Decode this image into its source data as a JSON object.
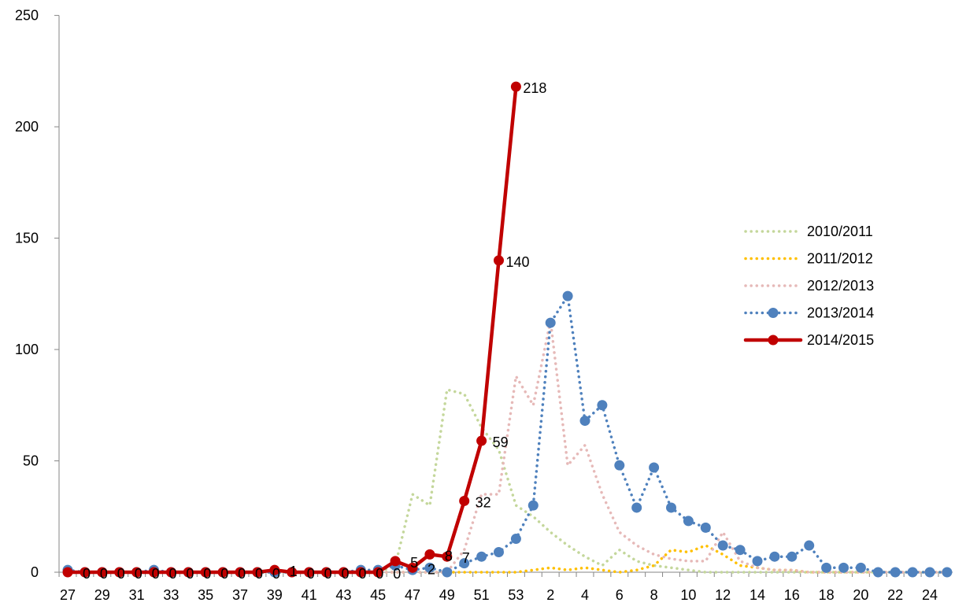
{
  "chart_data": {
    "type": "line",
    "title": "",
    "xlabel": "",
    "ylabel": "",
    "ylim": [
      0,
      250
    ],
    "yticks": [
      0,
      50,
      100,
      150,
      200,
      250
    ],
    "grid": false,
    "legend_placement": "right",
    "x_categories": [
      "27",
      "28",
      "29",
      "30",
      "31",
      "32",
      "33",
      "34",
      "35",
      "36",
      "37",
      "38",
      "39",
      "40",
      "41",
      "42",
      "43",
      "44",
      "45",
      "46",
      "47",
      "48",
      "49",
      "50",
      "51",
      "52",
      "53",
      "1",
      "2",
      "3",
      "4",
      "5",
      "6",
      "7",
      "8",
      "9",
      "10",
      "11",
      "12",
      "13",
      "14",
      "15",
      "16",
      "17",
      "18",
      "19",
      "20",
      "21",
      "22",
      "23",
      "24",
      "25"
    ],
    "x_tick_labels": [
      "27",
      "29",
      "31",
      "33",
      "35",
      "37",
      "39",
      "41",
      "43",
      "45",
      "47",
      "49",
      "51",
      "53",
      "2",
      "4",
      "6",
      "8",
      "10",
      "12",
      "14",
      "16",
      "18",
      "20",
      "22",
      "24"
    ],
    "series": [
      {
        "name": "2010/2011",
        "color": "#c4d79b",
        "style": "dotted",
        "markers": false,
        "values": [
          0,
          0,
          0,
          0,
          0,
          0,
          0,
          0,
          0,
          0,
          0,
          0,
          0,
          0,
          0,
          0,
          0,
          0,
          0,
          3,
          35,
          30,
          82,
          80,
          65,
          55,
          30,
          25,
          18,
          12,
          7,
          3,
          10,
          5,
          3,
          2,
          1,
          0,
          0,
          0,
          0,
          0,
          0,
          0,
          0,
          0,
          0,
          0,
          0,
          0,
          0,
          0
        ]
      },
      {
        "name": "2011/2012",
        "color": "#ffc000",
        "style": "dotted",
        "markers": false,
        "values": [
          0,
          0,
          0,
          0,
          0,
          0,
          0,
          0,
          0,
          0,
          0,
          0,
          0,
          0,
          0,
          0,
          0,
          0,
          0,
          0,
          0,
          0,
          0,
          0,
          0,
          0,
          0,
          1,
          2,
          1,
          2,
          1,
          0,
          1,
          3,
          10,
          9,
          12,
          8,
          3,
          2,
          1,
          1,
          0,
          0,
          0,
          0,
          0,
          0,
          0,
          0,
          0
        ]
      },
      {
        "name": "2012/2013",
        "color": "#e6b9b8",
        "style": "dotted",
        "markers": false,
        "values": [
          0,
          0,
          0,
          0,
          0,
          0,
          0,
          0,
          0,
          0,
          0,
          0,
          0,
          0,
          0,
          0,
          0,
          0,
          0,
          0,
          0,
          0,
          0,
          10,
          35,
          35,
          88,
          75,
          113,
          48,
          57,
          35,
          18,
          12,
          8,
          6,
          5,
          5,
          18,
          5,
          2,
          1,
          1,
          0,
          0,
          0,
          0,
          0,
          0,
          0,
          0,
          0
        ]
      },
      {
        "name": "2013/2014",
        "color": "#4f81bd",
        "style": "dotted",
        "markers": true,
        "values": [
          1,
          0,
          0,
          0,
          0,
          1,
          0,
          0,
          0,
          0,
          0,
          0,
          0,
          0,
          0,
          0,
          0,
          1,
          1,
          3,
          1,
          2,
          0,
          4,
          7,
          9,
          15,
          30,
          112,
          124,
          68,
          75,
          48,
          29,
          47,
          29,
          23,
          20,
          12,
          10,
          5,
          7,
          7,
          12,
          2,
          2,
          2,
          0,
          0,
          0,
          0,
          0
        ]
      },
      {
        "name": "2014/2015",
        "color": "#c00000",
        "style": "solid",
        "markers": true,
        "values": [
          0,
          0,
          0,
          0,
          0,
          0,
          0,
          0,
          0,
          0,
          0,
          0,
          1,
          0,
          0,
          0,
          0,
          0,
          0,
          5,
          2,
          8,
          7,
          32,
          59,
          140,
          218
        ]
      }
    ],
    "data_labels": {
      "series": "2014/2015",
      "values": [
        "0",
        "0",
        "0",
        "0",
        "0",
        "0",
        "0",
        "0",
        "0",
        "0",
        "0",
        "0",
        "1",
        "0",
        "0",
        "0",
        "0",
        "0",
        "0",
        "5",
        "2",
        "8",
        "7",
        "32",
        "59",
        "140",
        "218"
      ]
    },
    "legend": [
      {
        "label": "2010/2011"
      },
      {
        "label": "2011/2012"
      },
      {
        "label": "2012/2013"
      },
      {
        "label": "2013/2014"
      },
      {
        "label": "2014/2015"
      }
    ]
  }
}
